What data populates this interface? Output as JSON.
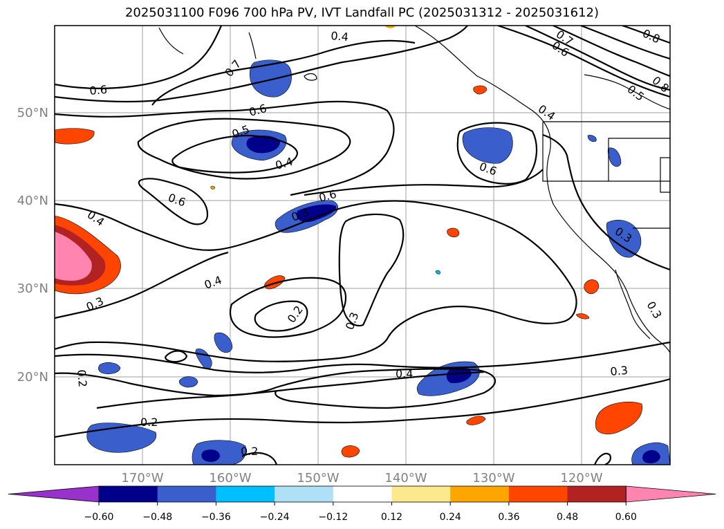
{
  "title": "2025031100 F096 700 hPa PV, IVT Landfall PC (2025031312 - 2025031612)",
  "map": {
    "lon_ticks": [
      "170°W",
      "160°W",
      "150°W",
      "140°W",
      "130°W",
      "120°W"
    ],
    "lat_ticks": [
      "50°N",
      "40°N",
      "30°N",
      "20°N"
    ],
    "contour_labels": [
      "0.6",
      "0.7",
      "0.4",
      "0.7",
      "0.6",
      "0.8",
      "0.8",
      "0.5",
      "0.4",
      "0.6",
      "0.5",
      "0.4",
      "0.6",
      "0.6",
      "0.6",
      "0.4",
      "0.3",
      "0.4",
      "0.3",
      "0.2",
      "0.3",
      "0.3",
      "0.2",
      "0.4",
      "0.3",
      "0.2",
      "0.2",
      "0.3"
    ]
  },
  "colorbar": {
    "ticks": [
      "−0.60",
      "−0.48",
      "−0.36",
      "−0.24",
      "−0.12",
      "0.12",
      "0.24",
      "0.36",
      "0.48",
      "0.60"
    ],
    "colors": [
      "#9932cc",
      "#00008b",
      "#3a5fcd",
      "#00bfff",
      "#b0e0f8",
      "#ffffff",
      "#fce98e",
      "#ffa500",
      "#ff4500",
      "#b22222",
      "#ff85b0"
    ]
  }
}
